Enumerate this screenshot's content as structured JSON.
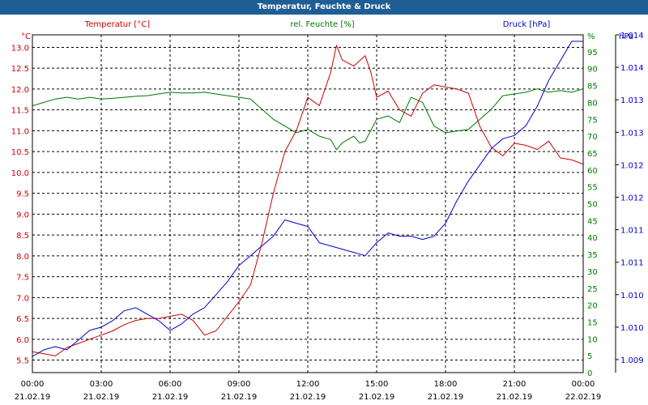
{
  "chart_data": {
    "type": "line",
    "title": "Temperatur, Feuchte & Druck",
    "x_ticks": [
      {
        "time": "00:00",
        "date": "21.02.19"
      },
      {
        "time": "03:00",
        "date": "21.02.19"
      },
      {
        "time": "06:00",
        "date": "21.02.19"
      },
      {
        "time": "09:00",
        "date": "21.02.19"
      },
      {
        "time": "12:00",
        "date": "21.02.19"
      },
      {
        "time": "15:00",
        "date": "21.02.19"
      },
      {
        "time": "18:00",
        "date": "21.02.19"
      },
      {
        "time": "21:00",
        "date": "21.02.19"
      },
      {
        "time": "00:00",
        "date": "22.02.19"
      }
    ],
    "xlim_hours": [
      0,
      24
    ],
    "axes": {
      "temperature": {
        "label": "Temperatur [°C]",
        "unit": "°C",
        "color": "#cc0000",
        "ylim": [
          5.2,
          13.3
        ],
        "ticks": [
          "5.5",
          "6.0",
          "6.5",
          "7.0",
          "7.5",
          "8.0",
          "8.5",
          "9.0",
          "9.5",
          "10.0",
          "10.5",
          "11.0",
          "11.5",
          "12.0",
          "12.5",
          "13.0"
        ]
      },
      "humidity": {
        "label": "rel. Feuchte [%]",
        "unit": "%",
        "color": "#007700",
        "ylim": [
          0,
          100
        ],
        "ticks": [
          "0",
          "5",
          "10",
          "15",
          "20",
          "25",
          "30",
          "35",
          "40",
          "45",
          "50",
          "55",
          "60",
          "65",
          "70",
          "75",
          "80",
          "85",
          "90",
          "95"
        ]
      },
      "pressure": {
        "label": "Druck [hPa]",
        "unit": "hPa",
        "color": "#0000cc",
        "ylim": [
          1009.2,
          1014.4
        ],
        "ticks": [
          "1.009",
          "1.010",
          "1.010",
          "1.011",
          "1.011",
          "1.012",
          "1.012",
          "1.013",
          "1.013",
          "1.014",
          "1.014"
        ],
        "tick_values": [
          1009.4,
          1009.9,
          1010.4,
          1010.9,
          1011.4,
          1011.9,
          1012.4,
          1012.9,
          1013.4,
          1013.9,
          1014.4
        ]
      }
    },
    "grid": true,
    "series": [
      {
        "name": "Temperatur",
        "axis": "temperature",
        "color": "#cc0000",
        "points": [
          [
            0,
            5.7
          ],
          [
            0.5,
            5.65
          ],
          [
            1,
            5.6
          ],
          [
            1.5,
            5.8
          ],
          [
            2,
            5.9
          ],
          [
            2.5,
            6.0
          ],
          [
            3,
            6.1
          ],
          [
            3.5,
            6.2
          ],
          [
            4,
            6.35
          ],
          [
            4.5,
            6.45
          ],
          [
            5,
            6.5
          ],
          [
            5.5,
            6.5
          ],
          [
            6,
            6.55
          ],
          [
            6.5,
            6.6
          ],
          [
            7,
            6.45
          ],
          [
            7.5,
            6.1
          ],
          [
            8,
            6.2
          ],
          [
            8.5,
            6.55
          ],
          [
            9,
            6.9
          ],
          [
            9.5,
            7.3
          ],
          [
            10,
            8.3
          ],
          [
            10.5,
            9.5
          ],
          [
            11,
            10.5
          ],
          [
            11.5,
            11.0
          ],
          [
            12,
            11.8
          ],
          [
            12.5,
            11.6
          ],
          [
            13,
            12.4
          ],
          [
            13.25,
            13.05
          ],
          [
            13.5,
            12.7
          ],
          [
            14,
            12.55
          ],
          [
            14.5,
            12.8
          ],
          [
            14.75,
            12.4
          ],
          [
            15,
            11.8
          ],
          [
            15.5,
            11.95
          ],
          [
            16,
            11.5
          ],
          [
            16.5,
            11.35
          ],
          [
            17,
            11.9
          ],
          [
            17.5,
            12.1
          ],
          [
            18,
            12.05
          ],
          [
            18.5,
            12.0
          ],
          [
            19,
            11.9
          ],
          [
            19.5,
            11.1
          ],
          [
            20,
            10.6
          ],
          [
            20.5,
            10.4
          ],
          [
            21,
            10.7
          ],
          [
            21.5,
            10.65
          ],
          [
            22,
            10.55
          ],
          [
            22.5,
            10.75
          ],
          [
            23,
            10.35
          ],
          [
            23.5,
            10.3
          ],
          [
            24,
            10.2
          ]
        ]
      },
      {
        "name": "rel. Feuchte",
        "axis": "humidity",
        "color": "#007700",
        "points": [
          [
            0,
            79
          ],
          [
            0.5,
            80
          ],
          [
            1,
            81
          ],
          [
            1.5,
            81.5
          ],
          [
            2,
            81
          ],
          [
            2.5,
            81.5
          ],
          [
            3,
            81
          ],
          [
            3.5,
            81.2
          ],
          [
            4,
            81.5
          ],
          [
            4.5,
            81.8
          ],
          [
            5,
            82
          ],
          [
            5.5,
            82.5
          ],
          [
            6,
            83
          ],
          [
            6.5,
            82.8
          ],
          [
            7,
            82.8
          ],
          [
            7.5,
            83
          ],
          [
            8,
            82.5
          ],
          [
            8.5,
            82
          ],
          [
            9,
            81.5
          ],
          [
            9.5,
            81
          ],
          [
            10,
            78
          ],
          [
            10.5,
            75
          ],
          [
            11,
            73
          ],
          [
            11.5,
            71
          ],
          [
            12,
            72
          ],
          [
            12.5,
            70
          ],
          [
            13,
            69
          ],
          [
            13.25,
            66
          ],
          [
            13.5,
            68
          ],
          [
            14,
            70
          ],
          [
            14.25,
            68
          ],
          [
            14.5,
            68.5
          ],
          [
            15,
            75
          ],
          [
            15.5,
            76
          ],
          [
            16,
            74
          ],
          [
            16.5,
            81.5
          ],
          [
            17,
            80
          ],
          [
            17.5,
            73
          ],
          [
            18,
            71
          ],
          [
            18.5,
            71.5
          ],
          [
            19,
            72
          ],
          [
            19.5,
            75
          ],
          [
            20,
            78
          ],
          [
            20.5,
            82
          ],
          [
            21,
            82.5
          ],
          [
            21.5,
            83
          ],
          [
            22,
            84
          ],
          [
            22.5,
            83
          ],
          [
            23,
            83.5
          ],
          [
            23.5,
            83
          ],
          [
            24,
            84
          ]
        ]
      },
      {
        "name": "Druck",
        "axis": "pressure",
        "color": "#0000cc",
        "points": [
          [
            0,
            1009.45
          ],
          [
            0.5,
            1009.55
          ],
          [
            1,
            1009.6
          ],
          [
            1.5,
            1009.55
          ],
          [
            2,
            1009.7
          ],
          [
            2.5,
            1009.85
          ],
          [
            3,
            1009.9
          ],
          [
            3.5,
            1010.0
          ],
          [
            4,
            1010.15
          ],
          [
            4.5,
            1010.2
          ],
          [
            5,
            1010.1
          ],
          [
            5.5,
            1010.0
          ],
          [
            6,
            1009.85
          ],
          [
            6.5,
            1009.95
          ],
          [
            7,
            1010.1
          ],
          [
            7.5,
            1010.2
          ],
          [
            8,
            1010.4
          ],
          [
            8.5,
            1010.6
          ],
          [
            9,
            1010.85
          ],
          [
            9.5,
            1011.0
          ],
          [
            10,
            1011.15
          ],
          [
            10.5,
            1011.3
          ],
          [
            11,
            1011.55
          ],
          [
            11.5,
            1011.5
          ],
          [
            12,
            1011.45
          ],
          [
            12.5,
            1011.2
          ],
          [
            13,
            1011.15
          ],
          [
            13.5,
            1011.1
          ],
          [
            14,
            1011.05
          ],
          [
            14.5,
            1011.0
          ],
          [
            15,
            1011.2
          ],
          [
            15.5,
            1011.35
          ],
          [
            16,
            1011.3
          ],
          [
            16.5,
            1011.3
          ],
          [
            17,
            1011.25
          ],
          [
            17.5,
            1011.3
          ],
          [
            18,
            1011.5
          ],
          [
            18.5,
            1011.85
          ],
          [
            19,
            1012.15
          ],
          [
            19.5,
            1012.4
          ],
          [
            20,
            1012.65
          ],
          [
            20.5,
            1012.8
          ],
          [
            21,
            1012.85
          ],
          [
            21.5,
            1013.0
          ],
          [
            22,
            1013.3
          ],
          [
            22.5,
            1013.7
          ],
          [
            23,
            1014.0
          ],
          [
            23.5,
            1014.3
          ],
          [
            24,
            1014.3
          ]
        ]
      }
    ]
  }
}
